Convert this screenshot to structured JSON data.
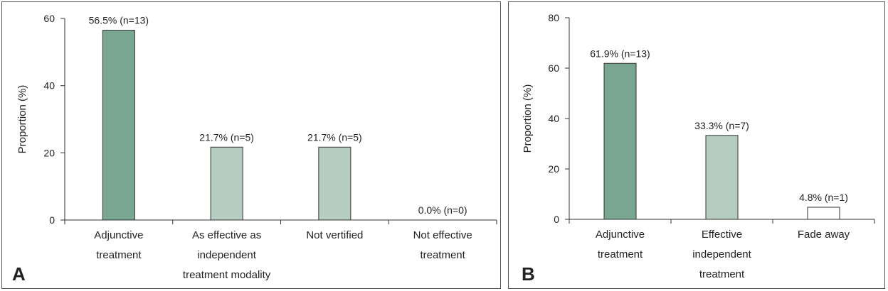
{
  "chart_data": [
    {
      "type": "bar",
      "panel_label": "A",
      "ylabel": "Proportion (%)",
      "ylim": [
        0,
        60
      ],
      "yticks": [
        0,
        20,
        40,
        60
      ],
      "categories": [
        [
          "Adjunctive",
          "treatment"
        ],
        [
          "As effective as",
          "independent",
          "treatment modality"
        ],
        [
          "Not vertified"
        ],
        [
          "Not effective",
          "treatment"
        ]
      ],
      "values": [
        56.5,
        21.7,
        21.7,
        0.0
      ],
      "data_labels": [
        "56.5% (n=13)",
        "21.7% (n=5)",
        "21.7% (n=5)",
        "0.0% (n=0)"
      ],
      "bar_colors": [
        "#79a691",
        "#b5cdc1",
        "#b5cdc1",
        "#ffffff"
      ]
    },
    {
      "type": "bar",
      "panel_label": "B",
      "ylabel": "Proportion (%)",
      "ylim": [
        0,
        80
      ],
      "yticks": [
        0,
        20,
        40,
        60,
        80
      ],
      "categories": [
        [
          "Adjunctive",
          "treatment"
        ],
        [
          "Effective",
          "independent",
          "treatment"
        ],
        [
          "Fade away"
        ]
      ],
      "values": [
        61.9,
        33.3,
        4.8
      ],
      "data_labels": [
        "61.9% (n=13)",
        "33.3% (n=7)",
        "4.8% (n=1)"
      ],
      "bar_colors": [
        "#79a691",
        "#b5cdc1",
        "#ffffff"
      ]
    }
  ]
}
